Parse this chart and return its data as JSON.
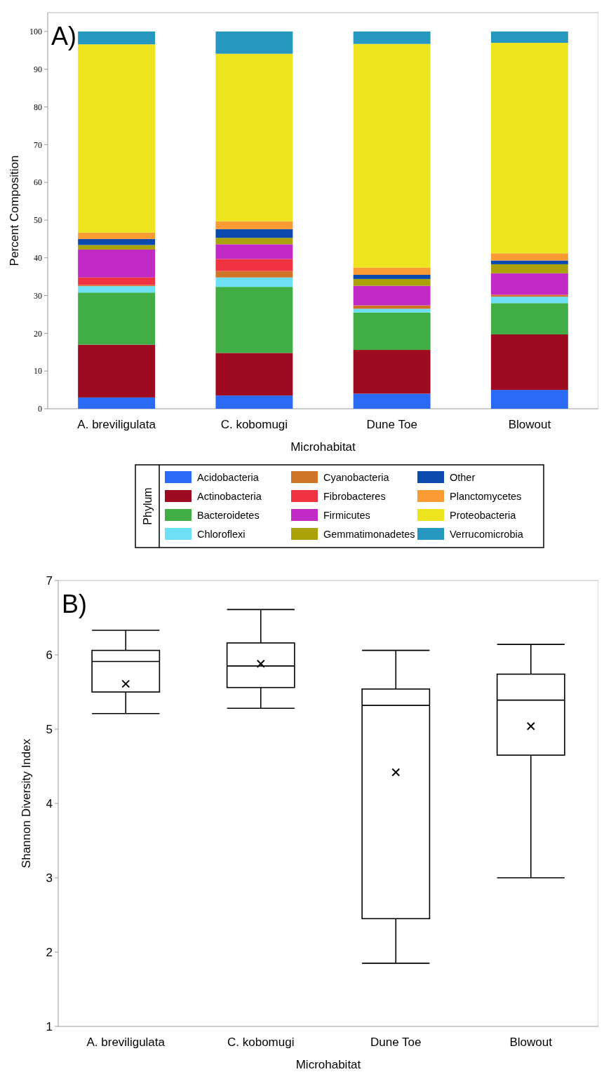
{
  "chart_data": [
    {
      "type": "bar",
      "title": "A)",
      "xlabel": "Microhabitat",
      "ylabel": "Percent Composition",
      "legend_title": "Phylum",
      "stacked": true,
      "legend": "bottom",
      "grid": false,
      "categories": [
        "A. breviligulata",
        "C. kobomugi",
        "Dune Toe",
        "Blowout"
      ],
      "ylim": [
        0,
        105
      ],
      "yticks": [
        0,
        10,
        20,
        30,
        40,
        50,
        60,
        70,
        80,
        90,
        100
      ],
      "series": [
        {
          "name": "Acidobacteria",
          "color": "#2a6af5",
          "values": [
            3,
            3.5,
            4,
            5
          ]
        },
        {
          "name": "Actinobacteria",
          "color": "#9e0a1f",
          "values": [
            14,
            11.3,
            11.6,
            14.7
          ]
        },
        {
          "name": "Bacteroidetes",
          "color": "#40ad45",
          "values": [
            13.8,
            17.5,
            9.9,
            8.3
          ]
        },
        {
          "name": "Chloroflexi",
          "color": "#6de0f5",
          "values": [
            1.7,
            2.5,
            1,
            1.7
          ]
        },
        {
          "name": "Cyanobacteria",
          "color": "#cf7528",
          "values": [
            0.3,
            1.7,
            0.9,
            0.5
          ]
        },
        {
          "name": "Fibrobacteres",
          "color": "#ef3340",
          "values": [
            2,
            3.2,
            0,
            0
          ]
        },
        {
          "name": "Firmicutes",
          "color": "#c22ac6",
          "values": [
            7.4,
            3.9,
            5.2,
            5.7
          ]
        },
        {
          "name": "Gemmatimonadetes",
          "color": "#aba20a",
          "values": [
            1.2,
            1.7,
            1.8,
            2.4
          ]
        },
        {
          "name": "Other",
          "color": "#0a4aad",
          "values": [
            1.6,
            2.3,
            1.1,
            1
          ]
        },
        {
          "name": "Planctomycetes",
          "color": "#f99a32",
          "values": [
            1.7,
            2.1,
            1.9,
            1.9
          ]
        },
        {
          "name": "Proteobacteria",
          "color": "#ede41e",
          "values": [
            49.9,
            44.4,
            59.3,
            55.8
          ]
        },
        {
          "name": "Verrucomicrobia",
          "color": "#2597c0",
          "values": [
            3.4,
            5.9,
            3.3,
            3
          ]
        }
      ]
    },
    {
      "type": "box",
      "title": "B)",
      "xlabel": "Microhabitat",
      "ylabel": "Shannon Diversity Index",
      "grid": false,
      "categories": [
        "A. breviligulata",
        "C. kobomugi",
        "Dune Toe",
        "Blowout"
      ],
      "ylim": [
        1,
        7
      ],
      "yticks": [
        1,
        2,
        3,
        4,
        5,
        6,
        7
      ],
      "boxes": [
        {
          "low": 5.21,
          "q1": 5.5,
          "median": 5.91,
          "q3": 6.06,
          "high": 6.33,
          "mean": 5.61
        },
        {
          "low": 5.28,
          "q1": 5.56,
          "median": 5.85,
          "q3": 6.16,
          "high": 6.61,
          "mean": 5.88
        },
        {
          "low": 1.85,
          "q1": 2.45,
          "median": 5.32,
          "q3": 5.54,
          "high": 6.06,
          "mean": 4.42
        },
        {
          "low": 3.0,
          "q1": 4.65,
          "median": 5.39,
          "q3": 5.74,
          "high": 6.14,
          "mean": 5.04
        }
      ]
    }
  ]
}
